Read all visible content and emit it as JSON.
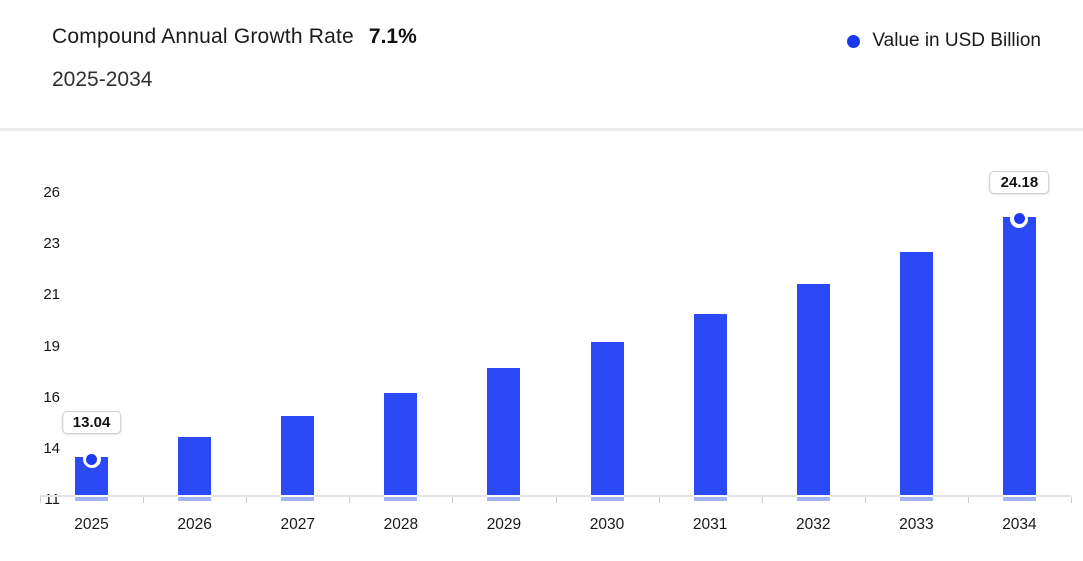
{
  "header": {
    "title": "Compound Annual Growth Rate",
    "cagr": "7.1%",
    "subtitle": "2025-2034"
  },
  "legend": {
    "label": "Value in USD Billion",
    "marker_color": "#1c38ee"
  },
  "chart_data": {
    "type": "bar",
    "title": "Compound Annual Growth Rate 7.1% 2025-2034",
    "unit": "USD Billion",
    "cagr_percent": 7.1,
    "categories": [
      "2025",
      "2026",
      "2027",
      "2028",
      "2029",
      "2030",
      "2031",
      "2032",
      "2033",
      "2034"
    ],
    "values": [
      13.04,
      13.97,
      14.96,
      16.02,
      17.16,
      18.37,
      19.68,
      21.08,
      22.57,
      24.18
    ],
    "xlabel": "",
    "ylabel": "",
    "ylim": [
      11,
      26
    ],
    "ytick_labels_top_to_bottom": [
      "26",
      "23",
      "21",
      "19",
      "16",
      "14",
      "11"
    ],
    "grid": false,
    "legend_position": "top-right",
    "bar_color": "#2b49f4",
    "bar_base_stripe_color": "#a4b3f7",
    "marker_color": "#1d3af0",
    "callouts": [
      {
        "category": "2025",
        "value_label": "13.04",
        "marker": true
      },
      {
        "category": "2034",
        "value_label": "24.18",
        "marker": true
      }
    ]
  }
}
